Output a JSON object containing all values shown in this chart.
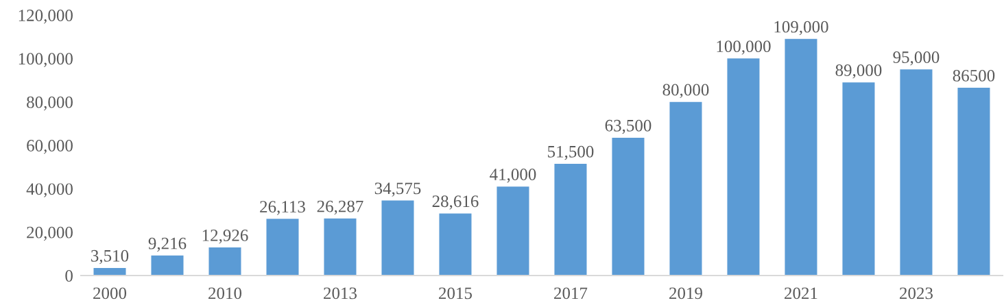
{
  "chart_data": {
    "type": "bar",
    "categories": [
      "2000",
      null,
      "2010",
      null,
      "2013",
      null,
      "2015",
      null,
      "2017",
      null,
      "2019",
      null,
      "2021",
      null,
      "2023",
      null
    ],
    "values": [
      3510,
      9216,
      12926,
      26113,
      26287,
      34575,
      28616,
      41000,
      51500,
      63500,
      80000,
      100000,
      109000,
      89000,
      95000,
      86500
    ],
    "color": "#5b9bd5",
    "value_labels": [
      "3,510",
      "9,216",
      "12,926",
      "26,113",
      "26,287",
      "34,575",
      "28,616",
      "41,000",
      "51,500",
      "63,500",
      "80,000",
      "100,000",
      "109,000",
      "89,000",
      "95,000",
      "86500"
    ],
    "ylim": [
      0,
      120000
    ],
    "yticks": [
      {
        "value": 0,
        "label": "0"
      },
      {
        "value": 20000,
        "label": "20,000"
      },
      {
        "value": 40000,
        "label": "40,000"
      },
      {
        "value": 60000,
        "label": "60,000"
      },
      {
        "value": 80000,
        "label": "80,000"
      },
      {
        "value": 100000,
        "label": "100,000"
      },
      {
        "value": 120000,
        "label": "120,000"
      }
    ]
  }
}
